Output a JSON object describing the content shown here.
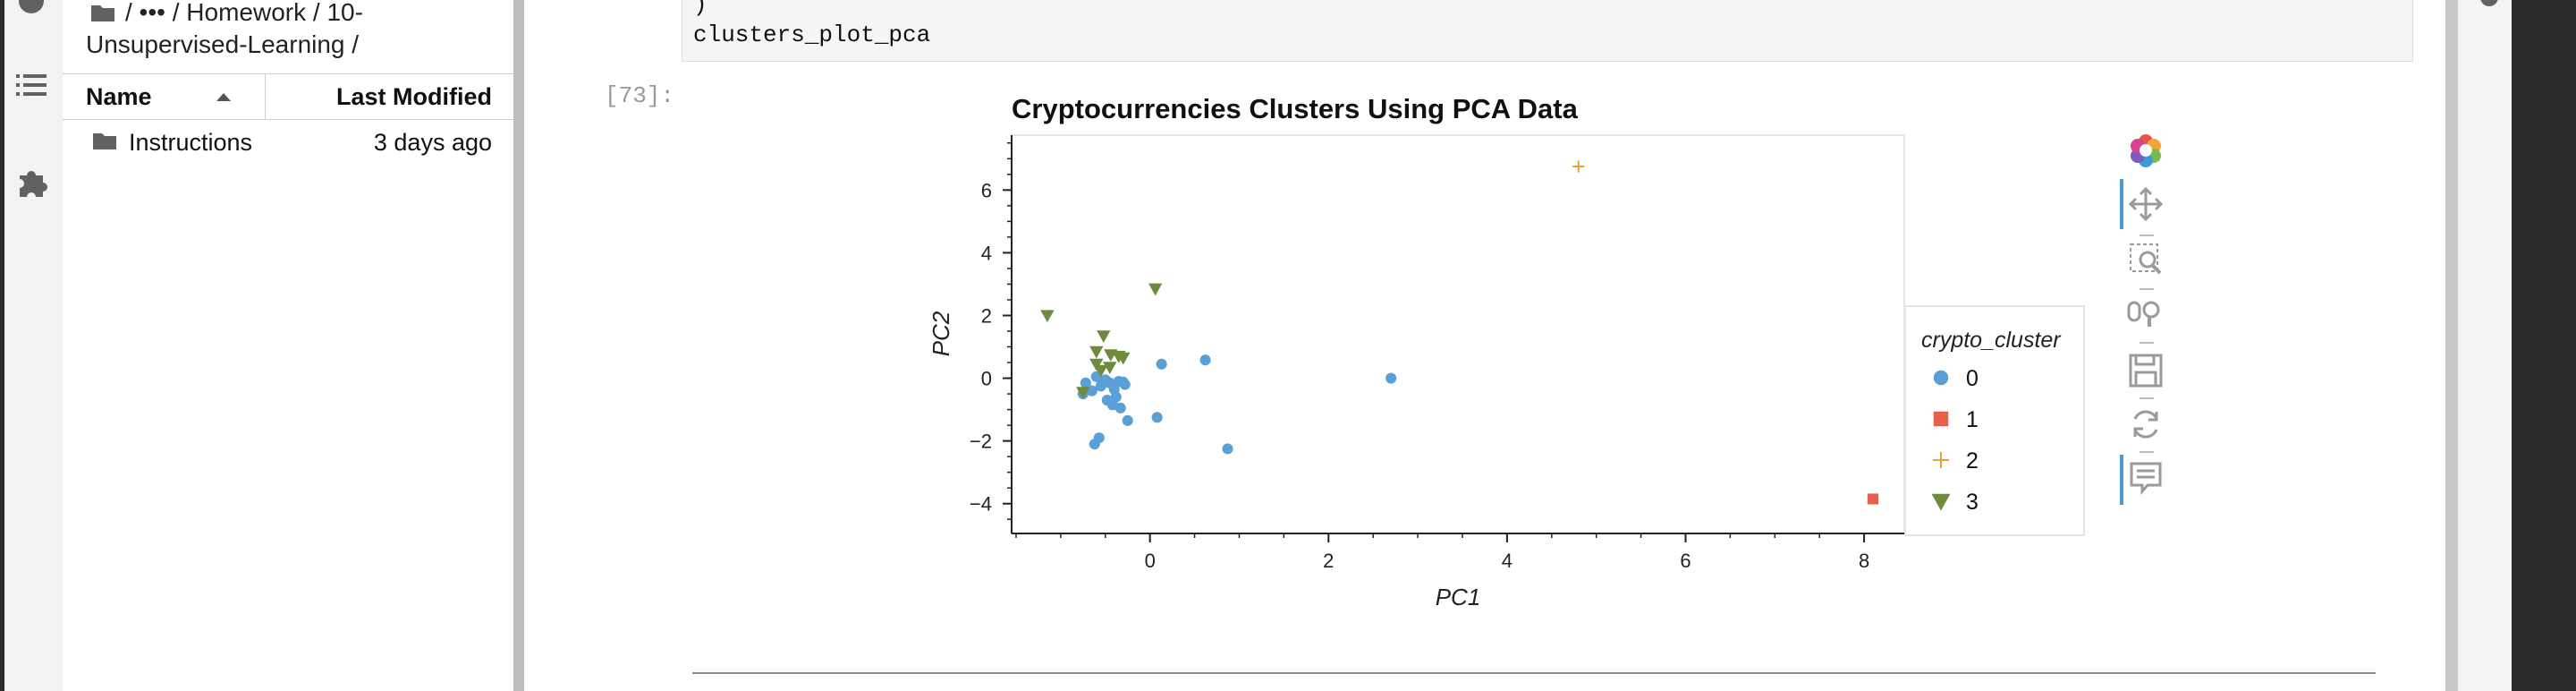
{
  "file_browser": {
    "breadcrumb_line1": "/ ••• / Homework / 10-",
    "breadcrumb_line2": "Unsupervised-Learning /",
    "col_name": "Name",
    "col_modified": "Last Modified",
    "rows": [
      {
        "name": "Instructions",
        "modified": "3 days ago"
      }
    ]
  },
  "code": {
    "line1": ")",
    "line2": "clusters_plot_pca"
  },
  "output_prompt": "[73]:",
  "colors": {
    "c0": "#5aa0d6",
    "c1": "#e8604a",
    "c2": "#e4a23c",
    "c3": "#6e8b3d",
    "toolbar_accent": "#4a9cd9"
  },
  "icons": [
    "folder-icon",
    "list-icon",
    "puzzle-icon",
    "bokeh-logo-icon",
    "pan-icon",
    "box-zoom-icon",
    "wheel-zoom-icon",
    "save-icon",
    "reset-icon",
    "hover-icon"
  ],
  "chart_data": {
    "type": "scatter",
    "title": "Cryptocurrencies Clusters Using PCA Data",
    "xlabel": "PC1",
    "ylabel": "PC2",
    "xlim": [
      -1.55,
      8.45
    ],
    "ylim": [
      -4.95,
      7.75
    ],
    "xticks": [
      0,
      2,
      4,
      6,
      8
    ],
    "yticks": [
      -4,
      -2,
      0,
      2,
      4,
      6
    ],
    "legend_title": "crypto_cluster",
    "legend_position": "right",
    "series": [
      {
        "name": "0",
        "marker": "circle",
        "points": [
          [
            -0.72,
            -0.15
          ],
          [
            -0.75,
            -0.5
          ],
          [
            -0.65,
            -0.4
          ],
          [
            -0.55,
            -0.25
          ],
          [
            -0.6,
            0.05
          ],
          [
            -0.5,
            -0.05
          ],
          [
            -0.45,
            -0.15
          ],
          [
            -0.4,
            -0.35
          ],
          [
            -0.35,
            -0.1
          ],
          [
            -0.3,
            -0.12
          ],
          [
            -0.48,
            -0.7
          ],
          [
            -0.42,
            -0.85
          ],
          [
            -0.38,
            -0.6
          ],
          [
            -0.33,
            -0.95
          ],
          [
            -0.62,
            -2.1
          ],
          [
            -0.57,
            -1.9
          ],
          [
            -0.25,
            -1.35
          ],
          [
            0.08,
            -1.25
          ],
          [
            0.13,
            0.45
          ],
          [
            0.62,
            0.58
          ],
          [
            0.87,
            -2.25
          ],
          [
            2.7,
            0.0
          ],
          [
            -0.28,
            -0.2
          ]
        ]
      },
      {
        "name": "1",
        "marker": "square",
        "points": [
          [
            8.1,
            -3.85
          ]
        ]
      },
      {
        "name": "2",
        "marker": "cross",
        "points": [
          [
            4.8,
            6.75
          ]
        ]
      },
      {
        "name": "3",
        "marker": "triangle",
        "points": [
          [
            -1.15,
            2.0
          ],
          [
            0.06,
            2.85
          ],
          [
            -0.52,
            1.35
          ],
          [
            -0.6,
            0.85
          ],
          [
            -0.44,
            0.75
          ],
          [
            -0.35,
            0.7
          ],
          [
            -0.3,
            0.65
          ],
          [
            -0.6,
            0.45
          ],
          [
            -0.45,
            0.35
          ],
          [
            -0.75,
            -0.45
          ],
          [
            -0.55,
            0.25
          ]
        ]
      }
    ]
  }
}
